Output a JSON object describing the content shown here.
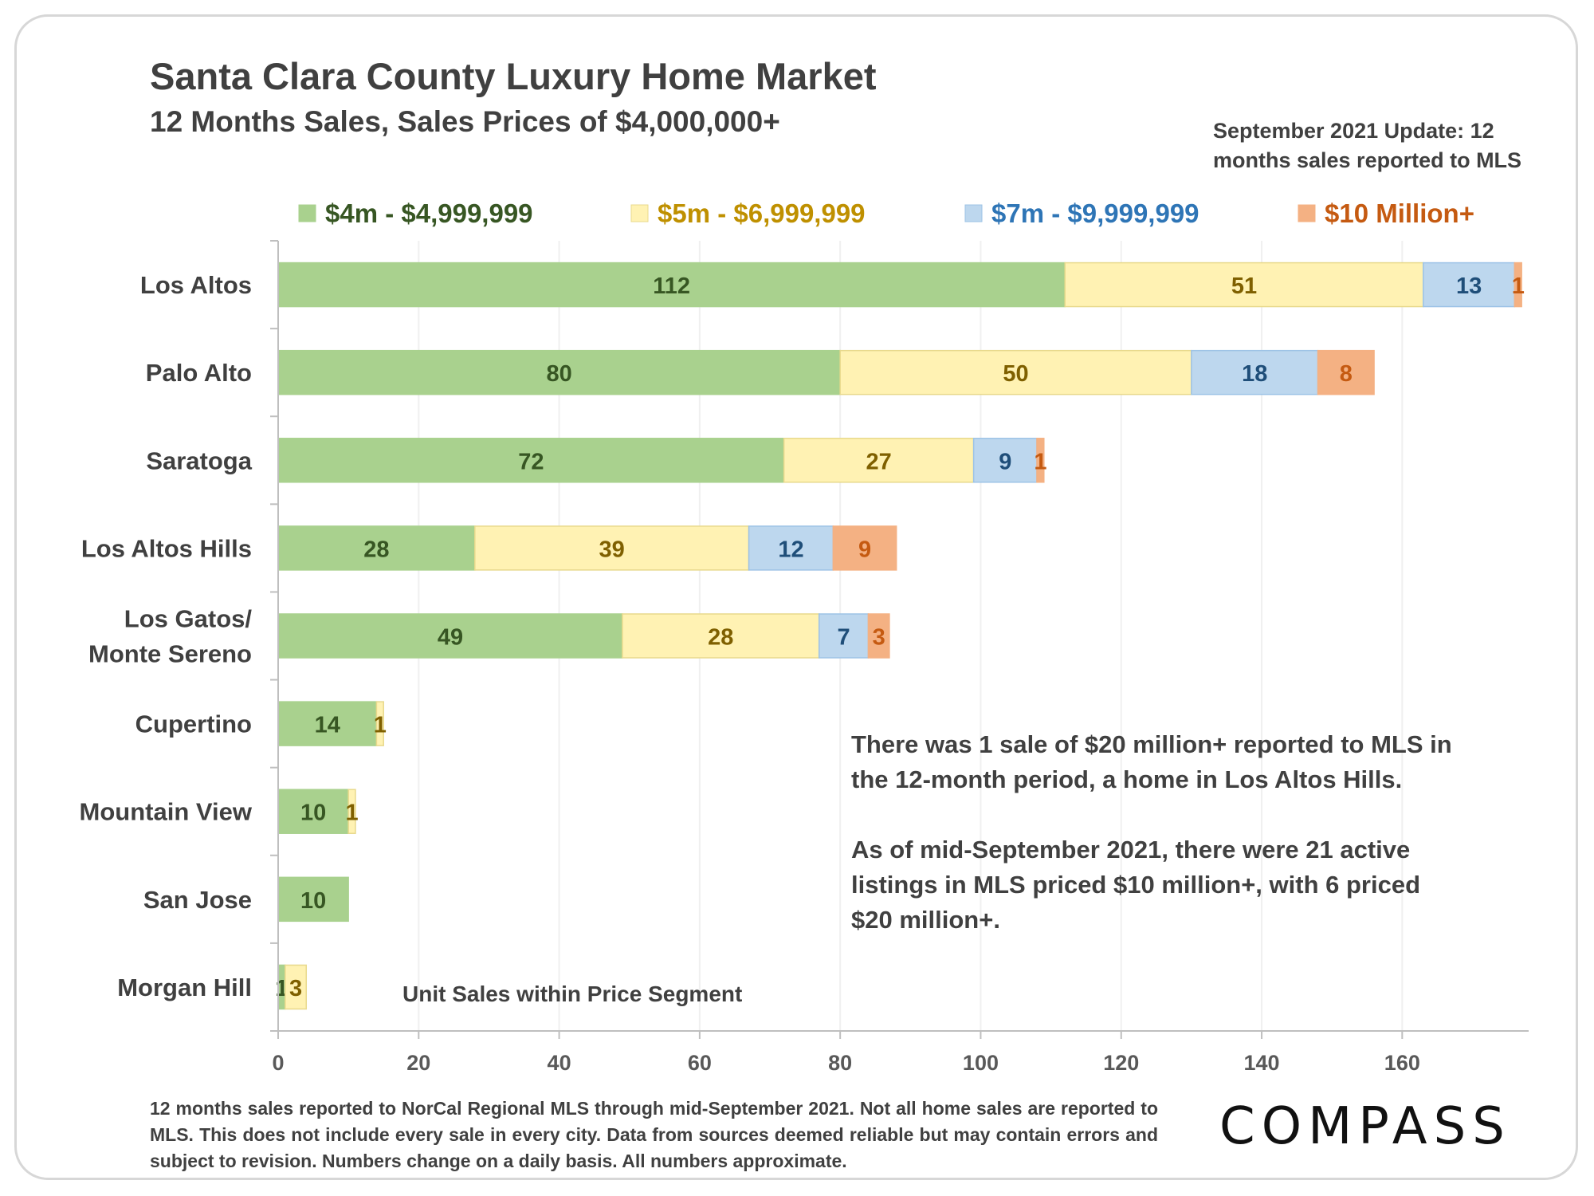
{
  "header": {
    "title": "Santa Clara County Luxury Home Market",
    "subtitle": "12 Months Sales, Sales Prices of $4,000,000+"
  },
  "update_note": "September 2021 Update: 12 months sales reported to MLS",
  "annotation": {
    "p1": "There was 1 sale of $20 million+ reported to MLS in the 12-month period, a home in Los Altos Hills.",
    "p2": "As of mid-September 2021, there were 21 active listings in MLS priced $10 million+, with 6 priced $20 million+."
  },
  "footnote": "12 months sales reported to NorCal Regional MLS through mid-September 2021. Not all home sales are reported to MLS. This does not include every sale in every city. Data from sources deemed reliable but may contain errors and subject to revision. Numbers change on a daily basis. All numbers approximate.",
  "brand": "COMPASS",
  "chart_data": {
    "type": "bar",
    "orientation": "horizontal",
    "stacked": true,
    "title": "Santa Clara County Luxury Home Market",
    "subtitle": "12 Months Sales, Sales Prices of $4,000,000+",
    "xlabel": "Unit Sales within Price Segment",
    "ylabel": "",
    "xlim": [
      0,
      178
    ],
    "x_ticks": [
      0,
      20,
      40,
      60,
      80,
      100,
      120,
      140,
      160
    ],
    "grid": "vertical-light",
    "legend_position": "top",
    "categories": [
      [
        "Los Altos"
      ],
      [
        "Palo Alto"
      ],
      [
        "Saratoga"
      ],
      [
        "Los Altos Hills"
      ],
      [
        "Los Gatos/",
        "Monte Sereno"
      ],
      [
        "Cupertino"
      ],
      [
        "Mountain View"
      ],
      [
        "San Jose"
      ],
      [
        "Morgan Hill"
      ]
    ],
    "series": [
      {
        "name": "$4m - $4,999,999",
        "fill": "#a9d18e",
        "stroke": "#a9d18e",
        "label_color": "#375623",
        "values": [
          112,
          80,
          72,
          28,
          49,
          14,
          10,
          10,
          1
        ],
        "labels": [
          "112",
          "80",
          "72",
          "28",
          "49",
          "14",
          "10",
          "10",
          "1"
        ]
      },
      {
        "name": "$5m - $6,999,999",
        "fill": "#fff2b3",
        "stroke": "#e8d98c",
        "label_color": "#7f6000",
        "legend_color": "#bf9000",
        "values": [
          51,
          50,
          27,
          39,
          28,
          1,
          1,
          0,
          3
        ],
        "labels": [
          "51",
          "50",
          "27",
          "39",
          "28",
          "1",
          "1",
          "",
          "3"
        ]
      },
      {
        "name": "$7m - $9,999,999",
        "fill": "#bdd7ee",
        "stroke": "#9dc3e6",
        "label_color": "#1f4e79",
        "legend_color": "#2e75b6",
        "values": [
          13,
          18,
          9,
          12,
          7,
          0,
          0,
          0,
          0
        ],
        "labels": [
          "13",
          "18",
          "9",
          "12",
          "7",
          "",
          "",
          "",
          ""
        ]
      },
      {
        "name": "$10 Million+",
        "fill": "#f4b183",
        "stroke": "#f4b183",
        "label_color": "#c55a11",
        "values": [
          1,
          8,
          1,
          9,
          3,
          0,
          0,
          0,
          0
        ],
        "labels": [
          "1",
          "8",
          "1",
          "9",
          "3",
          "",
          "",
          "",
          ""
        ]
      }
    ]
  }
}
